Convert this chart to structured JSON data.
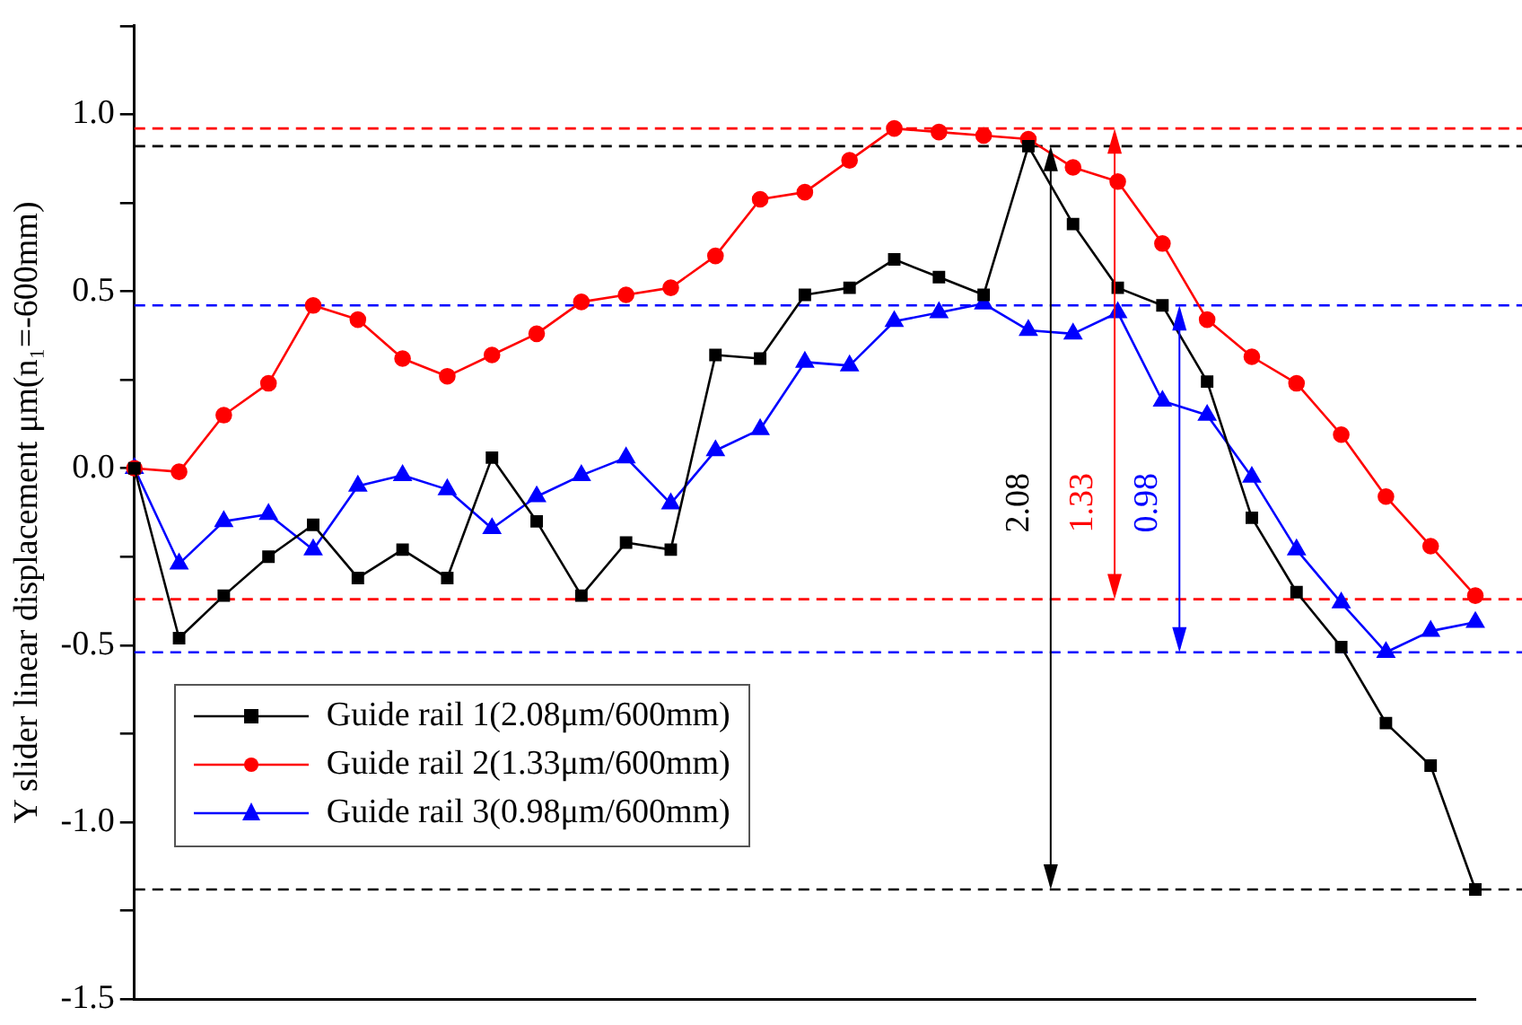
{
  "chart_data": {
    "type": "line",
    "ylabel": "Y slider linear displacement μm(n₁=-600mm)",
    "categories": [
      null,
      null,
      null,
      null,
      null,
      null,
      null,
      null,
      null,
      null,
      null,
      null,
      null,
      null,
      null,
      null,
      null,
      null,
      null,
      null,
      null,
      null,
      null,
      null,
      null,
      null,
      null,
      null,
      null,
      null,
      null
    ],
    "series": [
      {
        "name": "Guide rail 1(2.08μm/600mm)",
        "color": "#000000",
        "marker": "square",
        "values": [
          0,
          -0.48,
          -0.36,
          -0.25,
          -0.16,
          -0.31,
          -0.23,
          -0.31,
          0.03,
          -0.15,
          -0.36,
          -0.21,
          -0.23,
          0.32,
          0.31,
          0.49,
          0.51,
          0.59,
          0.54,
          0.49,
          0.91,
          0.69,
          0.51,
          0.46,
          0.245,
          -0.14,
          -0.35,
          -0.505,
          -0.72,
          -0.84,
          -1.19
        ]
      },
      {
        "name": "Guide rail 2(1.33μm/600mm)",
        "color": "#ff0000",
        "marker": "circle",
        "values": [
          0,
          -0.01,
          0.15,
          0.24,
          0.46,
          0.42,
          0.31,
          0.26,
          0.32,
          0.38,
          0.47,
          0.49,
          0.51,
          0.6,
          0.76,
          0.78,
          0.87,
          0.96,
          0.95,
          0.94,
          0.93,
          0.85,
          0.81,
          0.635,
          0.42,
          0.315,
          0.24,
          0.095,
          -0.08,
          -0.22,
          -0.36
        ]
      },
      {
        "name": "Guide rail 3(0.98μm/600mm)",
        "color": "#0000ff",
        "marker": "triangle",
        "values": [
          0,
          -0.27,
          -0.15,
          -0.13,
          -0.23,
          -0.05,
          -0.02,
          -0.06,
          -0.17,
          -0.08,
          -0.02,
          0.03,
          -0.1,
          0.05,
          0.11,
          0.3,
          0.29,
          0.415,
          0.44,
          0.465,
          0.39,
          0.38,
          0.44,
          0.19,
          0.15,
          -0.025,
          -0.23,
          -0.38,
          -0.52,
          -0.46,
          -0.435
        ]
      }
    ],
    "ylim": [
      -1.5,
      1.25
    ],
    "yticks": [
      {
        "value": -1.5,
        "label": "-1.5"
      },
      {
        "value": -1.25,
        "label": null
      },
      {
        "value": -1,
        "label": "-1.0"
      },
      {
        "value": -0.75,
        "label": null
      },
      {
        "value": -0.5,
        "label": "-0.5"
      },
      {
        "value": -0.25,
        "label": null
      },
      {
        "value": 0,
        "label": "0.0"
      },
      {
        "value": 0.25,
        "label": null
      },
      {
        "value": 0.5,
        "label": "0.5"
      },
      {
        "value": 0.75,
        "label": null
      },
      {
        "value": 1,
        "label": "1.0"
      },
      {
        "value": 1.25,
        "label": null
      }
    ],
    "ref_lines": [
      {
        "axis": "y",
        "value": 0.91,
        "color": "#000000",
        "line_style": "dashed"
      },
      {
        "axis": "y",
        "value": -1.19,
        "color": "#000000",
        "line_style": "dashed"
      },
      {
        "axis": "y",
        "value": 0.96,
        "color": "#ff0000",
        "line_style": "dashed"
      },
      {
        "axis": "y",
        "value": -0.37,
        "color": "#ff0000",
        "line_style": "dashed"
      },
      {
        "axis": "y",
        "value": 0.46,
        "color": "#0000ff",
        "line_style": "dashed"
      },
      {
        "axis": "y",
        "value": -0.52,
        "color": "#0000ff",
        "line_style": "dashed"
      }
    ],
    "annotations": [
      "2.08",
      "1.33",
      "0.98"
    ],
    "grid": false,
    "legend": "bottom left",
    "tick_labels": "y",
    "line_style": "solid"
  }
}
